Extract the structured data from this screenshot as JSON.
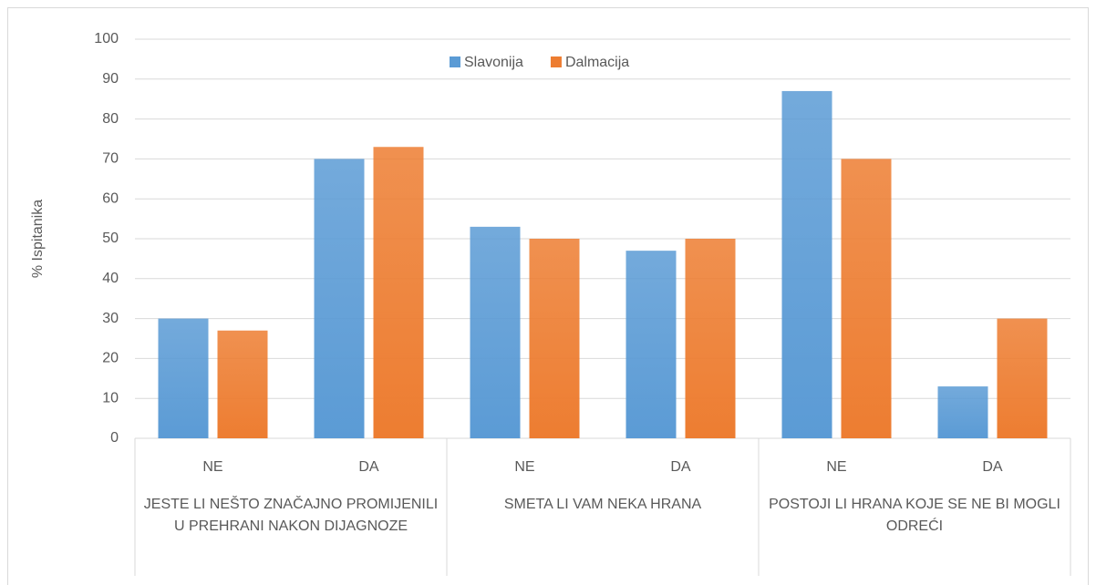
{
  "chart_data": {
    "type": "bar",
    "y_label": "% Ispitanika",
    "categories": [
      "NE",
      "DA",
      "NE",
      "DA",
      "NE",
      "DA"
    ],
    "groups": [
      "JESTE LI NEŠTO ZNAČAJNO PROMIJENILI U PREHRANI NAKON DIJAGNOZE",
      "SMETA LI VAM NEKA HRANA",
      "POSTOJI LI HRANA KOJE SE NE BI MOGLI ODREĆI"
    ],
    "series": [
      {
        "name": "Slavonija",
        "color": "#5b9bd5",
        "values": [
          30,
          70,
          53,
          47,
          87,
          13
        ]
      },
      {
        "name": "Dalmacija",
        "color": "#ed7d31",
        "values": [
          27,
          73,
          50,
          50,
          70,
          30
        ]
      }
    ],
    "ylim": [
      0,
      100
    ],
    "yticks": [
      0,
      10,
      20,
      30,
      40,
      50,
      60,
      70,
      80,
      90,
      100
    ],
    "grid": true,
    "legend": "top"
  }
}
